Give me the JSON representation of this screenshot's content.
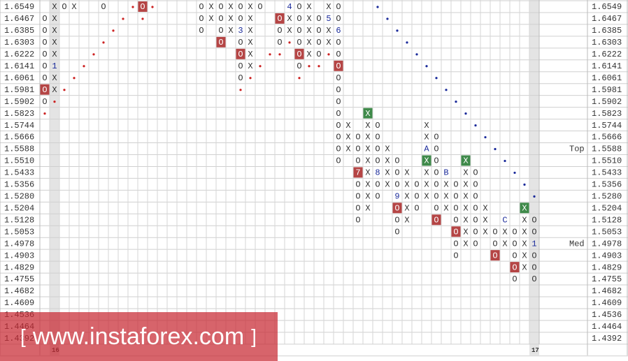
{
  "grid": {
    "rows": [
      {
        "price": "1.6549",
        "cells": {
          "1": "X",
          "2": "O",
          "3": "X",
          "6": "O",
          "9": {
            "dot": "#cc2222"
          },
          "10": {
            "text": "O",
            "box": "#b54545"
          },
          "11": {
            "dot": "#cc2222"
          },
          "16": "O",
          "17": "X",
          "18": "O",
          "19": "X",
          "20": "O",
          "21": "X",
          "22": "O",
          "25": "4",
          "26": "O",
          "27": "X",
          "29": "X",
          "30": "O",
          "34": {
            "dot": "#1a2a9a"
          }
        }
      },
      {
        "price": "1.6467",
        "cells": {
          "0": "O",
          "1": "X",
          "8": {
            "dot": "#cc2222"
          },
          "10": {
            "dot": "#cc2222"
          },
          "16": "O",
          "17": "X",
          "18": "O",
          "19": "X",
          "20": "O",
          "21": "X",
          "24": {
            "text": "O",
            "box": "#b54545"
          },
          "25": "X",
          "26": "O",
          "27": "X",
          "28": "O",
          "29": "5",
          "30": "O",
          "35": {
            "dot": "#1a2a9a"
          }
        }
      },
      {
        "price": "1.6385",
        "cells": {
          "0": "O",
          "1": "X",
          "7": {
            "dot": "#cc2222"
          },
          "16": "O",
          "18": "O",
          "19": "X",
          "20": "3",
          "21": "X",
          "24": "O",
          "25": "X",
          "26": "O",
          "27": "X",
          "28": "O",
          "29": "X",
          "30": "6",
          "36": {
            "dot": "#1a2a9a"
          }
        }
      },
      {
        "price": "1.6303",
        "cells": {
          "0": "O",
          "1": "X",
          "6": {
            "dot": "#cc2222"
          },
          "18": {
            "text": "O",
            "box": "#b54545"
          },
          "20": "O",
          "21": "X",
          "24": "O",
          "25": {
            "dot": "#cc2222"
          },
          "26": "O",
          "27": "X",
          "28": "O",
          "29": "X",
          "30": "O",
          "37": {
            "dot": "#1a2a9a"
          }
        }
      },
      {
        "price": "1.6222",
        "cells": {
          "0": "O",
          "1": "X",
          "5": {
            "dot": "#cc2222"
          },
          "20": {
            "text": "O",
            "box": "#b54545"
          },
          "21": "X",
          "23": {
            "dot": "#cc2222"
          },
          "24": {
            "dot": "#cc2222"
          },
          "26": {
            "text": "O",
            "box": "#b54545"
          },
          "27": "X",
          "28": "O",
          "29": {
            "dot": "#cc2222"
          },
          "30": "O",
          "38": {
            "dot": "#1a2a9a"
          }
        }
      },
      {
        "price": "1.6141",
        "cells": {
          "0": "O",
          "1": "1",
          "4": {
            "dot": "#cc2222"
          },
          "20": "O",
          "21": "X",
          "22": {
            "dot": "#cc2222"
          },
          "26": "O",
          "27": {
            "dot": "#cc2222"
          },
          "28": {
            "dot": "#cc2222"
          },
          "30": {
            "text": "O",
            "box": "#b54545"
          },
          "39": {
            "dot": "#1a2a9a"
          }
        }
      },
      {
        "price": "1.6061",
        "cells": {
          "0": "O",
          "1": "X",
          "3": {
            "dot": "#cc2222"
          },
          "20": "O",
          "21": {
            "dot": "#cc2222"
          },
          "26": {
            "dot": "#cc2222"
          },
          "30": "O",
          "40": {
            "dot": "#1a2a9a"
          }
        }
      },
      {
        "price": "1.5981",
        "cells": {
          "0": {
            "text": "O",
            "box": "#b54545"
          },
          "1": "X",
          "2": {
            "dot": "#cc2222"
          },
          "20": {
            "dot": "#cc2222"
          },
          "30": "O",
          "41": {
            "dot": "#1a2a9a"
          }
        }
      },
      {
        "price": "1.5902",
        "cells": {
          "0": "O",
          "1": {
            "dot": "#cc2222"
          },
          "30": "O",
          "42": {
            "dot": "#1a2a9a"
          }
        }
      },
      {
        "price": "1.5823",
        "cells": {
          "0": {
            "dot": "#cc2222"
          },
          "30": "O",
          "33": {
            "text": "X",
            "box": "#3f8a4a"
          },
          "43": {
            "dot": "#1a2a9a"
          }
        }
      },
      {
        "price": "1.5744",
        "cells": {
          "30": "O",
          "31": "X",
          "33": "X",
          "34": "O",
          "39": "X",
          "44": {
            "dot": "#1a2a9a"
          }
        }
      },
      {
        "price": "1.5666",
        "cells": {
          "30": "O",
          "31": "X",
          "32": "O",
          "33": "X",
          "34": "O",
          "39": "X",
          "40": "O",
          "45": {
            "dot": "#1a2a9a"
          }
        }
      },
      {
        "price": "1.5588",
        "note": "Top",
        "cells": {
          "30": "O",
          "31": "X",
          "32": "O",
          "33": "X",
          "34": "O",
          "35": "X",
          "39": "A",
          "40": "O",
          "46": {
            "dot": "#1a2a9a"
          }
        }
      },
      {
        "price": "1.5510",
        "cells": {
          "30": "O",
          "32": "O",
          "33": "X",
          "34": "O",
          "35": "X",
          "36": "O",
          "39": {
            "text": "X",
            "box": "#3f8a4a"
          },
          "40": "O",
          "43": {
            "text": "X",
            "box": "#3f8a4a"
          },
          "47": {
            "dot": "#1a2a9a"
          }
        }
      },
      {
        "price": "1.5433",
        "cells": {
          "32": {
            "text": "7",
            "box": "#b54545"
          },
          "33": "X",
          "34": "8",
          "35": "X",
          "36": "O",
          "37": "X",
          "39": "X",
          "40": "O",
          "41": "B",
          "43": "X",
          "44": "O",
          "48": {
            "dot": "#1a2a9a"
          }
        }
      },
      {
        "price": "1.5356",
        "cells": {
          "32": "O",
          "33": "X",
          "34": "O",
          "35": "X",
          "36": "O",
          "37": "X",
          "38": "O",
          "39": "X",
          "40": "O",
          "41": "X",
          "42": "O",
          "43": "X",
          "44": "O",
          "49": {
            "dot": "#1a2a9a"
          }
        }
      },
      {
        "price": "1.5280",
        "cells": {
          "32": "O",
          "33": "X",
          "34": "O",
          "36": "9",
          "37": "X",
          "38": "O",
          "39": "X",
          "40": "O",
          "41": "X",
          "42": "O",
          "43": "X",
          "44": "O",
          "50": {
            "dot": "#1a2a9a"
          }
        }
      },
      {
        "price": "1.5204",
        "cells": {
          "32": "O",
          "33": "X",
          "36": {
            "text": "O",
            "box": "#b54545"
          },
          "37": "X",
          "38": "O",
          "40": "O",
          "41": "X",
          "42": "O",
          "43": "X",
          "44": "O",
          "45": "X",
          "49": {
            "text": "X",
            "box": "#3f8a4a"
          }
        }
      },
      {
        "price": "1.5128",
        "cells": {
          "32": "O",
          "36": "O",
          "37": "X",
          "40": {
            "text": "O",
            "box": "#b54545"
          },
          "42": "O",
          "43": "X",
          "44": "O",
          "45": "X",
          "47": "C",
          "49": "X",
          "50": "O"
        }
      },
      {
        "price": "1.5053",
        "cells": {
          "36": "O",
          "42": {
            "text": "O",
            "box": "#b54545"
          },
          "43": "X",
          "44": "O",
          "45": "X",
          "46": "O",
          "47": "X",
          "48": "O",
          "49": "X",
          "50": "O"
        }
      },
      {
        "price": "1.4978",
        "note": "Med",
        "cells": {
          "42": "O",
          "43": "X",
          "44": "O",
          "46": "O",
          "47": "X",
          "48": "O",
          "49": "X",
          "50": "1"
        }
      },
      {
        "price": "1.4903",
        "cells": {
          "42": "O",
          "46": {
            "text": "O",
            "box": "#b54545"
          },
          "48": "O",
          "49": "X",
          "50": "O"
        }
      },
      {
        "price": "1.4829",
        "cells": {
          "48": {
            "text": "O",
            "box": "#b54545"
          },
          "49": "X",
          "50": "O"
        }
      },
      {
        "price": "1.4755",
        "cells": {
          "48": "O",
          "50": "O"
        }
      },
      {
        "price": "1.4682",
        "cells": {}
      },
      {
        "price": "1.4609",
        "cells": {}
      },
      {
        "price": "1.4536",
        "cells": {}
      },
      {
        "price": "1.4464",
        "cells": {}
      },
      {
        "price": "1.4392",
        "cells": {}
      }
    ],
    "date_labels": {
      "1": "16",
      "50": "17"
    }
  },
  "watermark": {
    "open": "[",
    "site": "www.instaforex.com",
    "close": "]"
  }
}
